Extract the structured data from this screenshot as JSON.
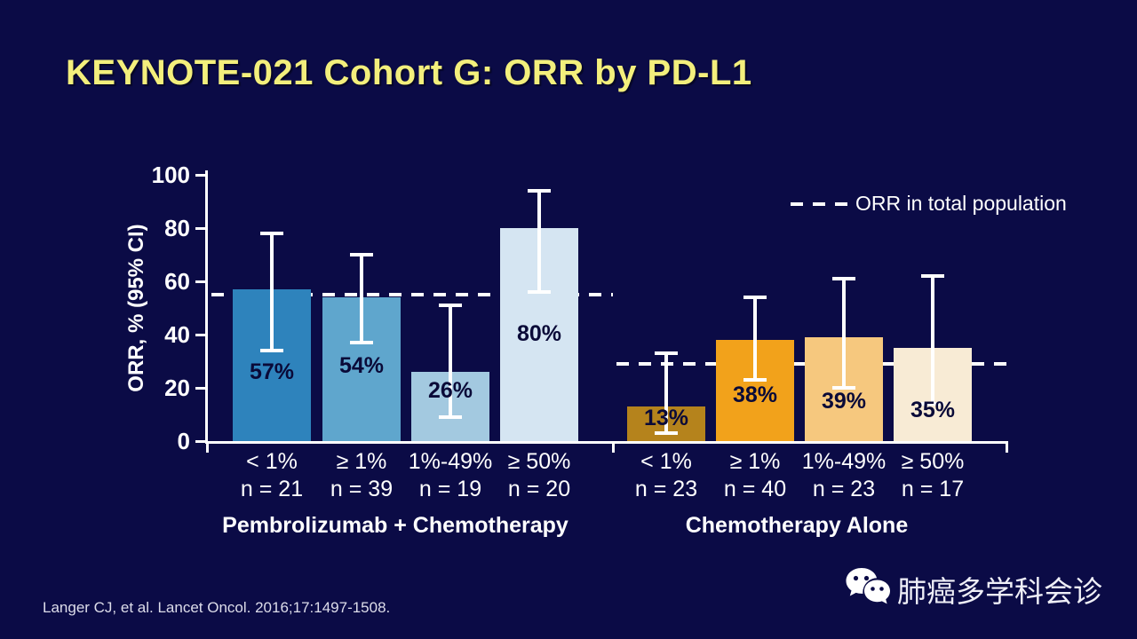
{
  "slide": {
    "title": "KEYNOTE-021 Cohort G: ORR by PD-L1",
    "title_color": "#F3EF7C",
    "background_color": "#0B0B46",
    "citation": "Langer CJ, et al. Lancet Oncol. 2016;17:1497-1508.",
    "wechat_label": "肺癌多学科会诊",
    "wechat_icon": "wechat-logo"
  },
  "chart_data": {
    "type": "bar",
    "ylabel": "ORR, % (95% CI)",
    "ylim": [
      0,
      100
    ],
    "yticks": [
      0,
      20,
      40,
      60,
      80,
      100
    ],
    "grid": false,
    "legend": {
      "label": "ORR in total population",
      "style": "dashed-line",
      "position": "top-right",
      "color": "#FFFFFF"
    },
    "error_bar_color": "#FFFFFF",
    "groups": [
      {
        "name": "Pembrolizumab + Chemotherapy",
        "reference_line_value": 55,
        "bars": [
          {
            "category": "< 1%",
            "n_label": "n = 21",
            "value": 57,
            "label": "57%",
            "ci_low": 34,
            "ci_high": 78,
            "color": "#2E83BC"
          },
          {
            "category": "≥ 1%",
            "n_label": "n = 39",
            "value": 54,
            "label": "54%",
            "ci_low": 37,
            "ci_high": 70,
            "color": "#5FA6CD"
          },
          {
            "category": "1%-49%",
            "n_label": "n = 19",
            "value": 26,
            "label": "26%",
            "ci_low": 9,
            "ci_high": 51,
            "color": "#A3C9E0"
          },
          {
            "category": "≥ 50%",
            "n_label": "n = 20",
            "value": 80,
            "label": "80%",
            "ci_low": 56,
            "ci_high": 94,
            "color": "#D5E5F2"
          }
        ]
      },
      {
        "name": "Chemotherapy Alone",
        "reference_line_value": 29,
        "bars": [
          {
            "category": "< 1%",
            "n_label": "n = 23",
            "value": 13,
            "label": "13%",
            "ci_low": 3,
            "ci_high": 33,
            "color": "#B5831C"
          },
          {
            "category": "≥ 1%",
            "n_label": "n = 40",
            "value": 38,
            "label": "38%",
            "ci_low": 23,
            "ci_high": 54,
            "color": "#F2A21B"
          },
          {
            "category": "1%-49%",
            "n_label": "n = 23",
            "value": 39,
            "label": "39%",
            "ci_low": 20,
            "ci_high": 61,
            "color": "#F6C87E"
          },
          {
            "category": "≥ 50%",
            "n_label": "n = 17",
            "value": 35,
            "label": "35%",
            "ci_low": 14,
            "ci_high": 62,
            "color": "#F8EBD5"
          }
        ]
      }
    ]
  }
}
